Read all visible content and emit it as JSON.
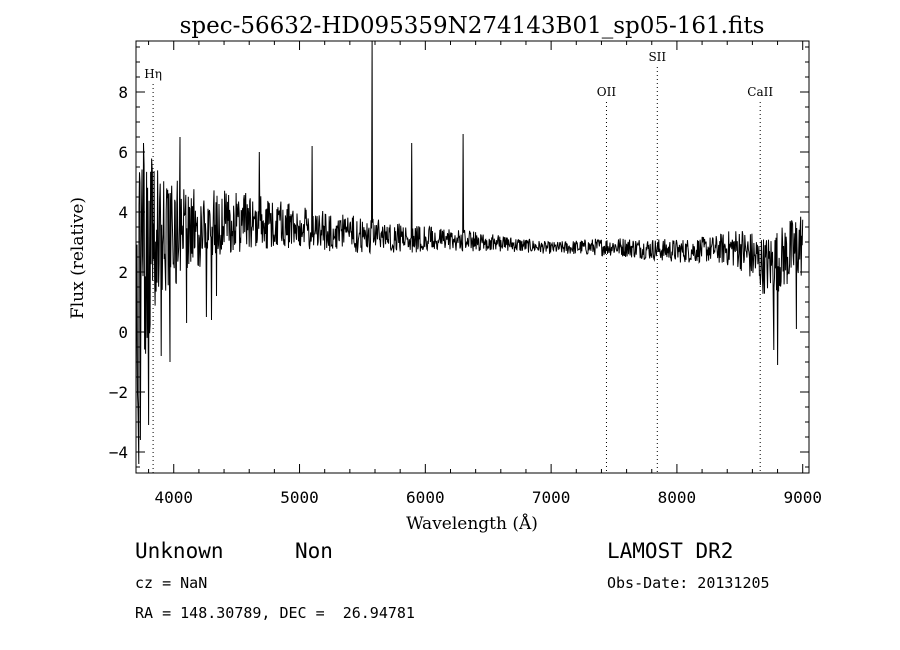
{
  "chart_data": {
    "type": "line",
    "title": "spec-56632-HD095359N274143B01_sp05-161.fits",
    "xlabel": "Wavelength (Å)",
    "ylabel": "Flux (relative)",
    "xlim": [
      3700,
      9050
    ],
    "ylim": [
      -4.7,
      9.7
    ],
    "x_ticks": [
      4000,
      5000,
      6000,
      7000,
      8000,
      9000
    ],
    "x_tick_labels": [
      "4000",
      "5000",
      "6000",
      "7000",
      "8000",
      "9000"
    ],
    "y_ticks": [
      -4,
      -2,
      0,
      2,
      4,
      6,
      8
    ],
    "y_tick_labels": [
      "−4",
      "−2",
      "0",
      "2",
      "4",
      "6",
      "8"
    ],
    "line_markers": [
      {
        "label": "Hη",
        "wavelength": 3836
      },
      {
        "label": "OII",
        "wavelength": 7440
      },
      {
        "label": "SII",
        "wavelength": 7844
      },
      {
        "label": "CaII",
        "wavelength": 8662
      }
    ],
    "continuum": [
      {
        "x": 3700,
        "y": 0.5
      },
      {
        "x": 3780,
        "y": 2.5
      },
      {
        "x": 3860,
        "y": 3.3
      },
      {
        "x": 4000,
        "y": 3.3
      },
      {
        "x": 4200,
        "y": 3.5
      },
      {
        "x": 4400,
        "y": 3.6
      },
      {
        "x": 4600,
        "y": 3.7
      },
      {
        "x": 4800,
        "y": 3.6
      },
      {
        "x": 5000,
        "y": 3.5
      },
      {
        "x": 5300,
        "y": 3.3
      },
      {
        "x": 5600,
        "y": 3.2
      },
      {
        "x": 6000,
        "y": 3.1
      },
      {
        "x": 6500,
        "y": 3.0
      },
      {
        "x": 7000,
        "y": 2.8
      },
      {
        "x": 7500,
        "y": 2.85
      },
      {
        "x": 8000,
        "y": 2.7
      },
      {
        "x": 8500,
        "y": 2.8
      },
      {
        "x": 8700,
        "y": 2.2
      },
      {
        "x": 8900,
        "y": 2.6
      },
      {
        "x": 9000,
        "y": 3.0
      }
    ],
    "noise_amplitude": [
      {
        "x": 3700,
        "y": 4.5
      },
      {
        "x": 3900,
        "y": 2.0
      },
      {
        "x": 4300,
        "y": 1.2
      },
      {
        "x": 4800,
        "y": 0.8
      },
      {
        "x": 5500,
        "y": 0.6
      },
      {
        "x": 6500,
        "y": 0.3
      },
      {
        "x": 7000,
        "y": 0.2
      },
      {
        "x": 7400,
        "y": 0.3
      },
      {
        "x": 8300,
        "y": 0.45
      },
      {
        "x": 8700,
        "y": 1.0
      },
      {
        "x": 9000,
        "y": 1.2
      }
    ],
    "features": [
      {
        "x": 3722,
        "y": -4.4
      },
      {
        "x": 3735,
        "y": -3.6
      },
      {
        "x": 3760,
        "y": 6.3
      },
      {
        "x": 3800,
        "y": -3.1
      },
      {
        "x": 3830,
        "y": 5.3
      },
      {
        "x": 3900,
        "y": -0.8
      },
      {
        "x": 3970,
        "y": -1.0
      },
      {
        "x": 4050,
        "y": 6.5
      },
      {
        "x": 4102,
        "y": 0.3
      },
      {
        "x": 4260,
        "y": 0.5
      },
      {
        "x": 4300,
        "y": 0.4
      },
      {
        "x": 4340,
        "y": 1.2
      },
      {
        "x": 4680,
        "y": 6.0
      },
      {
        "x": 5100,
        "y": 6.2
      },
      {
        "x": 5577,
        "y": 9.7
      },
      {
        "x": 5892,
        "y": 6.3
      },
      {
        "x": 6300,
        "y": 6.6
      },
      {
        "x": 8770,
        "y": -0.6
      },
      {
        "x": 8800,
        "y": -1.1
      },
      {
        "x": 8900,
        "y": 3.7
      },
      {
        "x": 8950,
        "y": 0.1
      }
    ],
    "grid": false,
    "legend": "none"
  },
  "footer": {
    "object_class": "Unknown",
    "subclass": "Non",
    "redshift": "cz = NaN",
    "coordinates": "RA = 148.30789, DEC =  26.94781",
    "survey": "LAMOST DR2",
    "obs_date": "Obs-Date: 20131205"
  }
}
